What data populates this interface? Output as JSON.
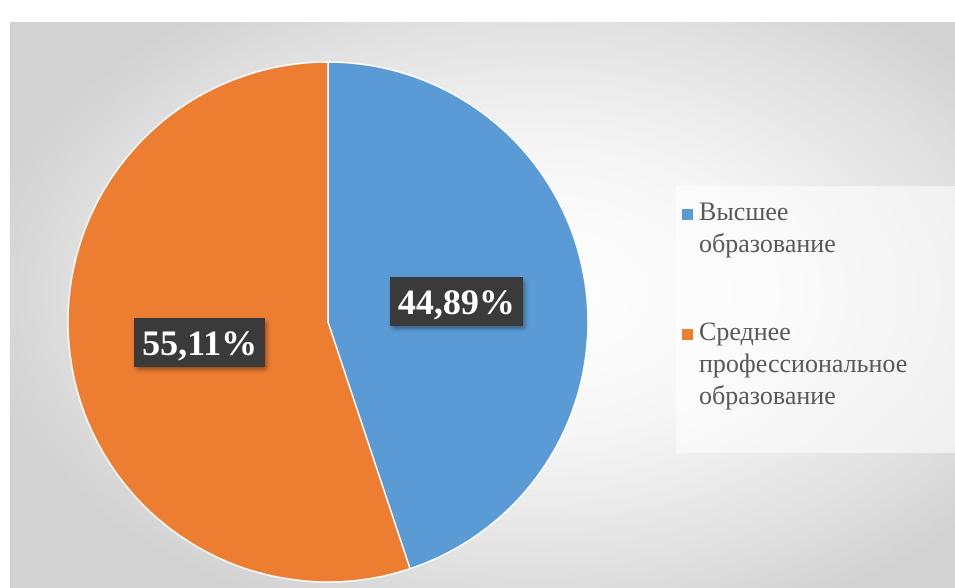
{
  "chart_data": {
    "type": "pie",
    "categories": [
      "Высшее образование",
      "Среднее профессиональное образование"
    ],
    "values": [
      44.89,
      55.11
    ],
    "data_labels": [
      "44,89%",
      "55,11%"
    ],
    "colors": [
      "#5b9bd5",
      "#ed7d31"
    ],
    "legend_placement": "right",
    "start_angle_deg": 0,
    "direction": "clockwise"
  },
  "legend": {
    "items": [
      {
        "line1": "Высшее",
        "line2": "образование",
        "line3": ""
      },
      {
        "line1": "Среднее",
        "line2": "профессиональное",
        "line3": "образование"
      }
    ]
  }
}
